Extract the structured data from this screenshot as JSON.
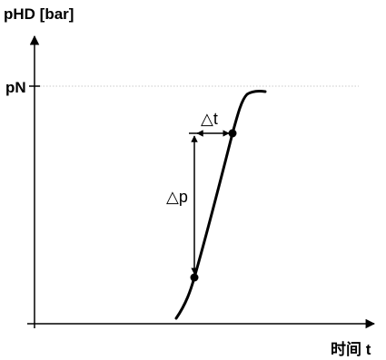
{
  "diagram": {
    "y_axis_label": "pHD [bar]",
    "y_tick_label": "pN",
    "x_axis_label": "时间 t",
    "delta_t_label": "△t",
    "delta_p_label": "△p",
    "colors": {
      "line": "#000000",
      "reference_line": "#c8c8c8",
      "background": "#ffffff"
    }
  }
}
